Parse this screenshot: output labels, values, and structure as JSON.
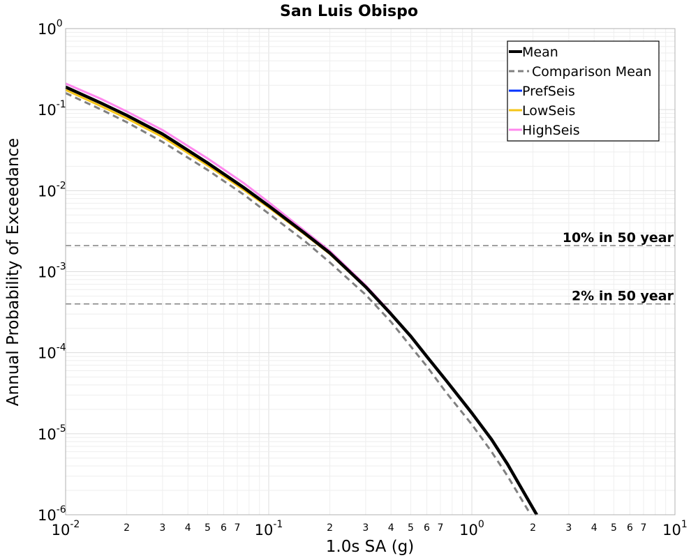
{
  "chart_data": {
    "type": "line",
    "title": "San Luis Obispo",
    "xlabel": "1.0s SA (g)",
    "ylabel": "Annual Probability of Exceedance",
    "xscale": "log",
    "yscale": "log",
    "xlim": [
      0.01,
      10
    ],
    "ylim": [
      1e-06,
      1
    ],
    "grid": true,
    "legend_position": "top-right",
    "x_ticks": [
      {
        "base": "10",
        "exp": "-2"
      },
      {
        "base": "10",
        "exp": "-1"
      },
      {
        "base": "10",
        "exp": "0"
      },
      {
        "base": "10",
        "exp": "1"
      }
    ],
    "y_ticks": [
      {
        "base": "10",
        "exp": "-6"
      },
      {
        "base": "10",
        "exp": "-5"
      },
      {
        "base": "10",
        "exp": "-4"
      },
      {
        "base": "10",
        "exp": "-3"
      },
      {
        "base": "10",
        "exp": "-2"
      },
      {
        "base": "10",
        "exp": "-1"
      },
      {
        "base": "10",
        "exp": "0"
      }
    ],
    "minor_tick_labels": [
      "2",
      "3",
      "4",
      "5",
      "6",
      "7"
    ],
    "series": [
      {
        "name": "Mean",
        "color": "#000000",
        "style": "solid",
        "x": [
          0.01,
          0.015,
          0.02,
          0.03,
          0.05,
          0.075,
          0.1,
          0.15,
          0.2,
          0.3,
          0.4,
          0.5,
          0.6,
          0.75,
          1.0,
          1.25,
          1.5,
          2.0,
          2.2
        ],
        "y": [
          0.19,
          0.12,
          0.085,
          0.05,
          0.022,
          0.011,
          0.0065,
          0.003,
          0.0017,
          0.00065,
          0.0003,
          0.00016,
          9e-05,
          4.5e-05,
          1.8e-05,
          8.5e-06,
          4.2e-06,
          1.2e-06,
          8e-07
        ]
      },
      {
        "name": "Comparison Mean",
        "color": "#808080",
        "style": "dashed",
        "x": [
          0.01,
          0.015,
          0.02,
          0.03,
          0.05,
          0.075,
          0.1,
          0.15,
          0.2,
          0.3,
          0.4,
          0.5,
          0.6,
          0.75,
          1.0,
          1.25,
          1.5,
          2.0
        ],
        "y": [
          0.16,
          0.1,
          0.07,
          0.04,
          0.018,
          0.009,
          0.0052,
          0.0024,
          0.0013,
          0.00052,
          0.00024,
          0.00012,
          6.8e-05,
          3.2e-05,
          1.3e-05,
          6e-06,
          3e-06,
          9e-07
        ]
      },
      {
        "name": "PrefSeis",
        "color": "#0033ff",
        "style": "solid",
        "x": [
          0.01,
          0.015,
          0.02,
          0.03,
          0.05,
          0.075,
          0.1,
          0.15,
          0.2,
          0.3,
          0.4
        ],
        "y": [
          0.19,
          0.12,
          0.085,
          0.05,
          0.022,
          0.011,
          0.0065,
          0.003,
          0.0017,
          0.00065,
          0.0003
        ]
      },
      {
        "name": "LowSeis",
        "color": "#f5c518",
        "style": "solid",
        "x": [
          0.01,
          0.015,
          0.02,
          0.03,
          0.05,
          0.075,
          0.1,
          0.15,
          0.2,
          0.3,
          0.4
        ],
        "y": [
          0.175,
          0.11,
          0.078,
          0.046,
          0.0205,
          0.0103,
          0.0062,
          0.0029,
          0.00165,
          0.00064,
          0.0003
        ]
      },
      {
        "name": "HighSeis",
        "color": "#ff88ee",
        "style": "solid",
        "x": [
          0.01,
          0.015,
          0.02,
          0.03,
          0.05,
          0.075,
          0.1,
          0.15,
          0.2,
          0.3,
          0.4
        ],
        "y": [
          0.21,
          0.135,
          0.095,
          0.056,
          0.025,
          0.0125,
          0.0072,
          0.0032,
          0.0018,
          0.00068,
          0.00031
        ]
      }
    ],
    "reference_lines": [
      {
        "label": "10% in 50 year",
        "y": 0.0021,
        "color": "#808080",
        "style": "dashed"
      },
      {
        "label": "2% in 50 year",
        "y": 0.0004,
        "color": "#808080",
        "style": "dashed"
      }
    ]
  }
}
